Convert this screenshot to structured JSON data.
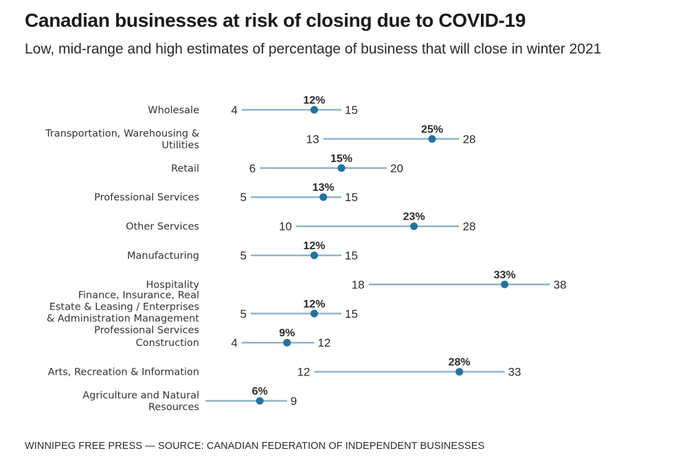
{
  "title": "Canadian businesses at risk of closing due to COVID-19",
  "subtitle": "Low, mid-range and high estimates of percentage of business that will close in winter 2021",
  "footer": "WINNIPEG FREE PRESS — SOURCE: CANADIAN FEDERATION OF INDEPENDENT BUSINESSES",
  "colors": {
    "range_line": "#8fb3cc",
    "dot": "#1f74a0",
    "text": "#2a2a2a"
  },
  "chart_data": {
    "type": "range-dot",
    "title": "Canadian businesses at risk of closing due to COVID-19",
    "subtitle": "Low, mid-range and high estimates of percentage of business that will close in winter 2021",
    "unit": "%",
    "xlim": [
      0,
      40
    ],
    "grid": false,
    "legend": "none",
    "categories": [
      {
        "label": [
          "Wholesale"
        ],
        "low": 4,
        "mid": 12,
        "high": 15
      },
      {
        "label": [
          "Transportation, Warehousing &",
          "Utilities"
        ],
        "low": 13,
        "mid": 25,
        "high": 28
      },
      {
        "label": [
          "Retail"
        ],
        "low": 6,
        "mid": 15,
        "high": 20
      },
      {
        "label": [
          "Professional Services"
        ],
        "low": 5,
        "mid": 13,
        "high": 15
      },
      {
        "label": [
          "Other Services"
        ],
        "low": 10,
        "mid": 23,
        "high": 28
      },
      {
        "label": [
          "Manufacturing"
        ],
        "low": 5,
        "mid": 12,
        "high": 15
      },
      {
        "label": [
          "Hospitality"
        ],
        "low": 18,
        "mid": 33,
        "high": 38
      },
      {
        "label": [
          "Finance, Insurance, Real",
          "Estate & Leasing / Enterprises",
          "& Administration Management",
          "Professional Services"
        ],
        "low": 5,
        "mid": 12,
        "high": 15
      },
      {
        "label": [
          "Construction"
        ],
        "low": 4,
        "mid": 9,
        "high": 12
      },
      {
        "label": [
          "Arts, Recreation & Information"
        ],
        "low": 12,
        "mid": 28,
        "high": 33
      },
      {
        "label": [
          "Agriculture and Natural",
          "Resources"
        ],
        "low": 0,
        "mid": 6,
        "high": 9,
        "low_label_hidden": true
      }
    ]
  }
}
